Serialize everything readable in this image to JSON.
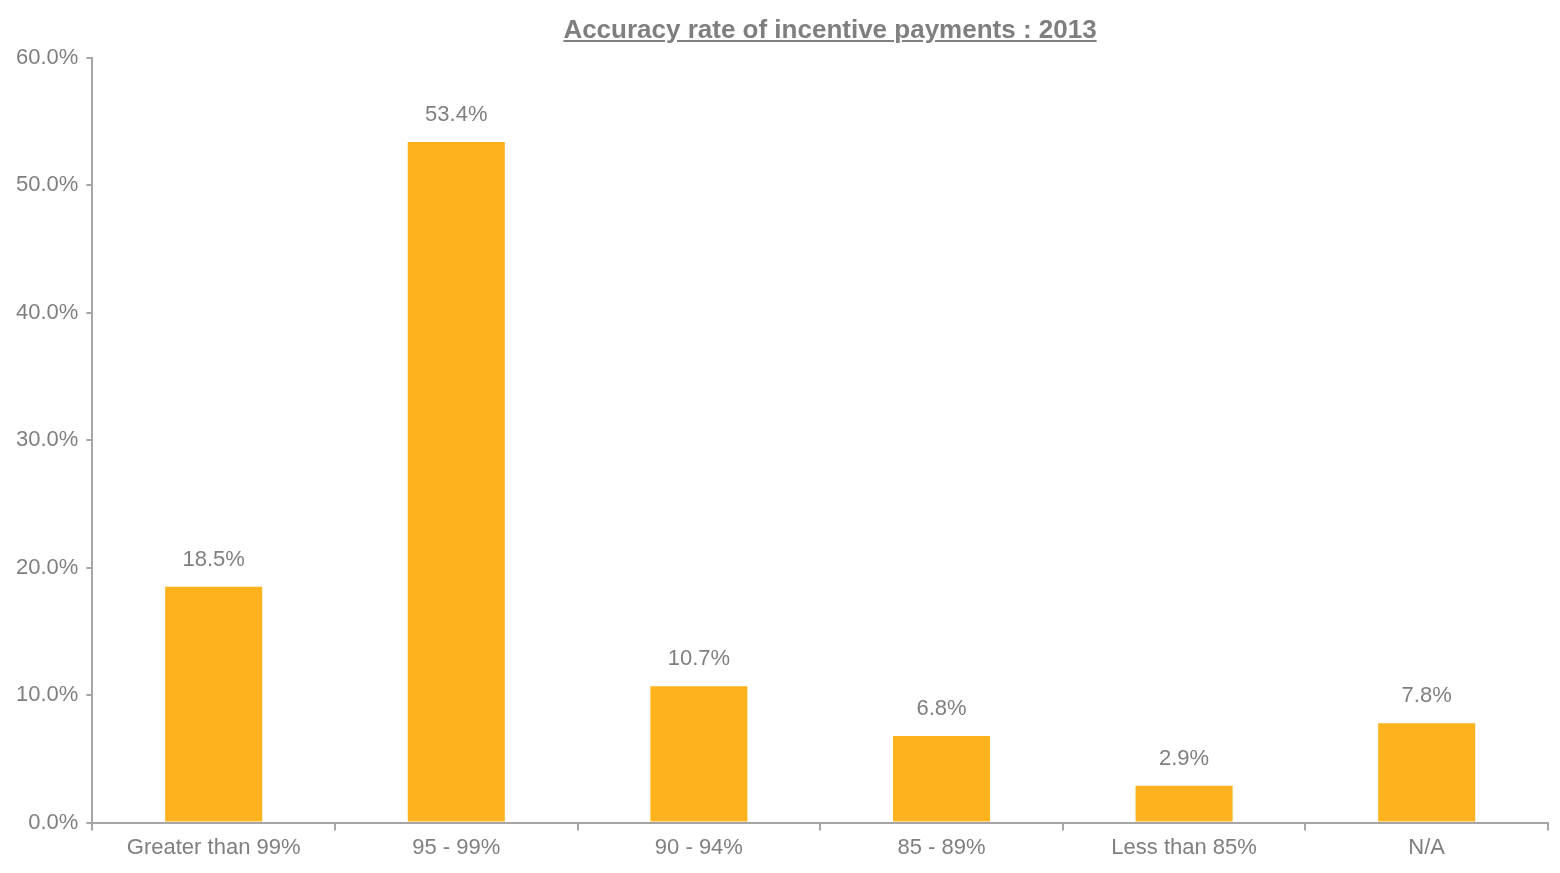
{
  "chart_data": {
    "type": "bar",
    "title": "Accuracy rate of incentive payments : 2013",
    "categories": [
      "Greater than 99%",
      "95 - 99%",
      "90 - 94%",
      "85 - 89%",
      "Less than 85%",
      "N/A"
    ],
    "values": [
      18.5,
      53.4,
      10.7,
      6.8,
      2.9,
      7.8
    ],
    "value_labels": [
      "18.5%",
      "53.4%",
      "10.7%",
      "6.8%",
      "2.9%",
      "7.8%"
    ],
    "color": "#fdb21e",
    "ylim": [
      0,
      60
    ],
    "yticks": [
      {
        "value": 0,
        "label": "0.0%"
      },
      {
        "value": 10,
        "label": "10.0%"
      },
      {
        "value": 20,
        "label": "20.0%"
      },
      {
        "value": 30,
        "label": "30.0%"
      },
      {
        "value": 40,
        "label": "40.0%"
      },
      {
        "value": 50,
        "label": "50.0%"
      },
      {
        "value": 60,
        "label": "60.0%"
      }
    ],
    "grid": false,
    "legend": false
  }
}
